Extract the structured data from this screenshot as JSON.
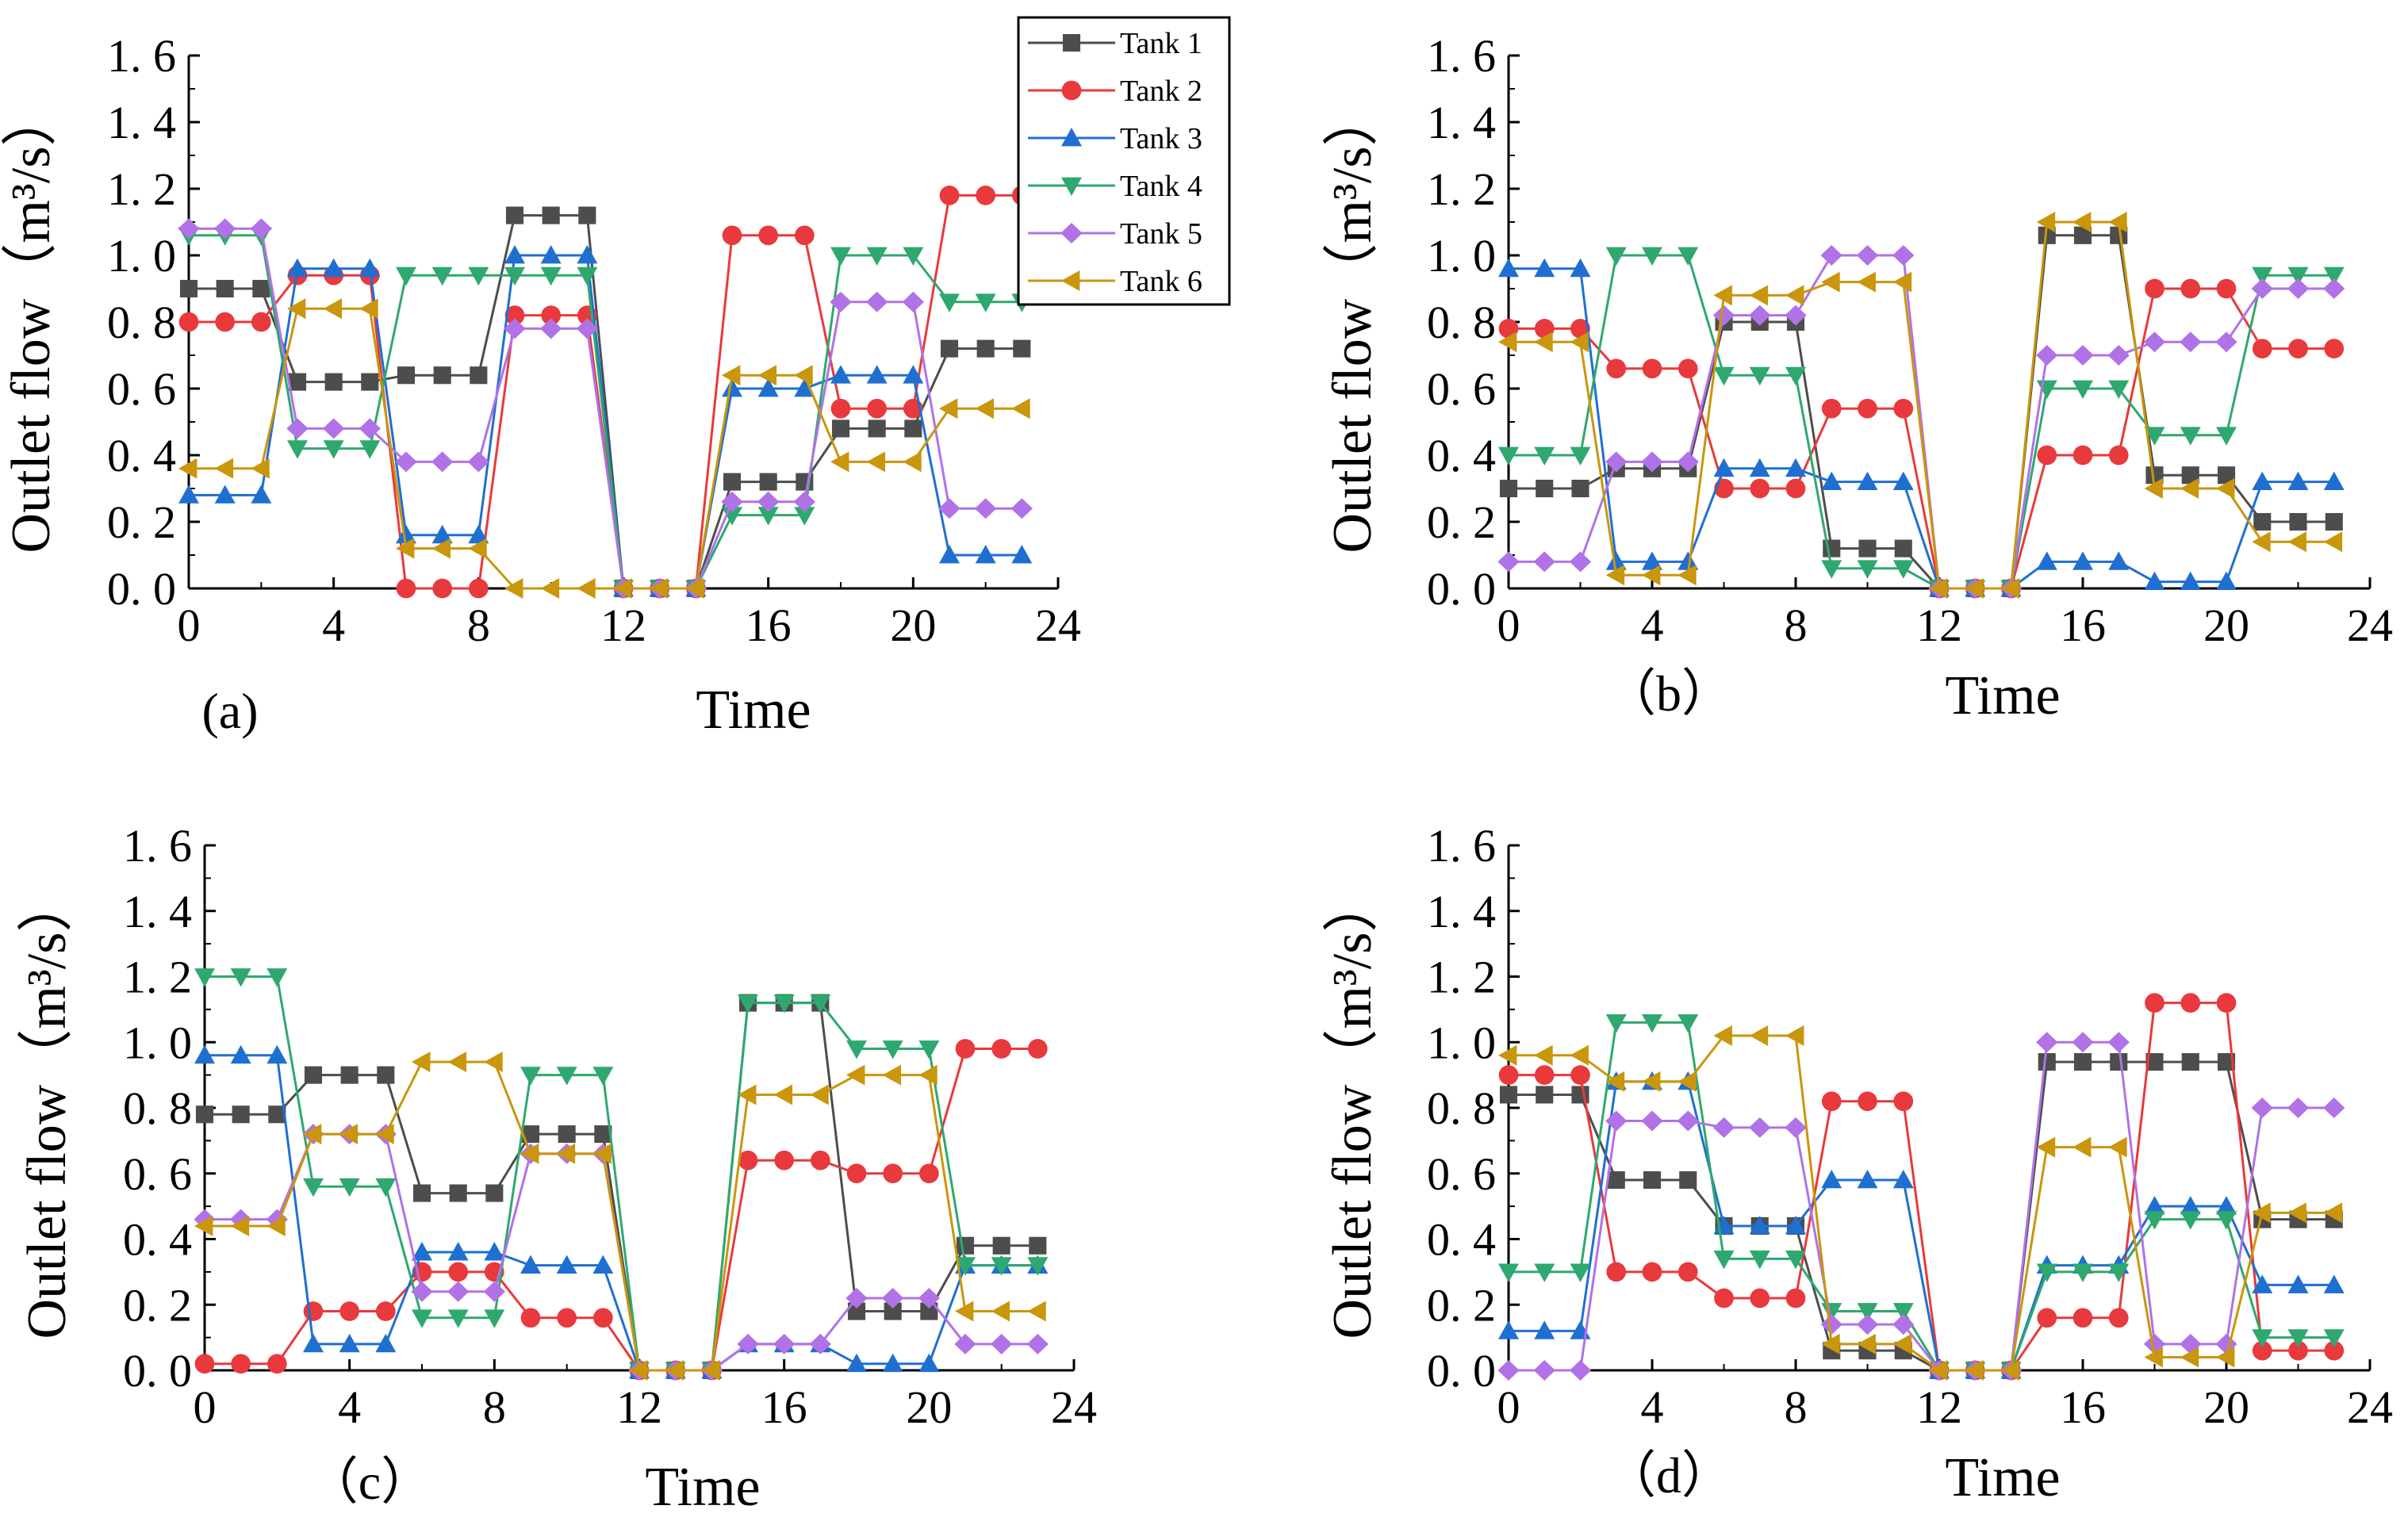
{
  "chart_data": [
    {
      "type": "line",
      "panel": "(a)",
      "xlabel": "Time",
      "ylabel": "Outlet flow（m³/s）",
      "xlim": [
        0,
        24
      ],
      "ylim": [
        0,
        1.6
      ],
      "x_ticks": [
        "0",
        "4",
        "8",
        "12",
        "16",
        "20",
        "24"
      ],
      "y_ticks": [
        "0. 0",
        "0. 2",
        "0. 4",
        "0. 6",
        "0. 8",
        "1. 0",
        "1. 2",
        "1. 4",
        "1. 6"
      ],
      "x": [
        0,
        1,
        2,
        3,
        4,
        5,
        6,
        7,
        8,
        9,
        10,
        11,
        12,
        13,
        14,
        15,
        16,
        17,
        18,
        19,
        20,
        21,
        22,
        23
      ],
      "series": [
        {
          "name": "Tank 1",
          "values": [
            0.9,
            0.9,
            0.9,
            0.62,
            0.62,
            0.62,
            0.64,
            0.64,
            0.64,
            1.12,
            1.12,
            1.12,
            0,
            0,
            0,
            0.32,
            0.32,
            0.32,
            0.48,
            0.48,
            0.48,
            0.72,
            0.72,
            0.72
          ]
        },
        {
          "name": "Tank 2",
          "values": [
            0.8,
            0.8,
            0.8,
            0.94,
            0.94,
            0.94,
            0,
            0,
            0,
            0.82,
            0.82,
            0.82,
            0,
            0,
            0,
            1.06,
            1.06,
            1.06,
            0.54,
            0.54,
            0.54,
            1.18,
            1.18,
            1.18
          ]
        },
        {
          "name": "Tank 3",
          "values": [
            0.28,
            0.28,
            0.28,
            0.96,
            0.96,
            0.96,
            0.16,
            0.16,
            0.16,
            1.0,
            1.0,
            1.0,
            0,
            0,
            0,
            0.6,
            0.6,
            0.6,
            0.64,
            0.64,
            0.64,
            0.1,
            0.1,
            0.1
          ]
        },
        {
          "name": "Tank 4",
          "values": [
            1.06,
            1.06,
            1.06,
            0.42,
            0.42,
            0.42,
            0.94,
            0.94,
            0.94,
            0.94,
            0.94,
            0.94,
            0,
            0,
            0,
            0.22,
            0.22,
            0.22,
            1.0,
            1.0,
            1.0,
            0.86,
            0.86,
            0.86
          ]
        },
        {
          "name": "Tank 5",
          "values": [
            1.08,
            1.08,
            1.08,
            0.48,
            0.48,
            0.48,
            0.38,
            0.38,
            0.38,
            0.78,
            0.78,
            0.78,
            0,
            0,
            0,
            0.26,
            0.26,
            0.26,
            0.86,
            0.86,
            0.86,
            0.24,
            0.24,
            0.24
          ]
        },
        {
          "name": "Tank 6",
          "values": [
            0.36,
            0.36,
            0.36,
            0.84,
            0.84,
            0.84,
            0.12,
            0.12,
            0.12,
            0,
            0,
            0,
            0,
            0,
            0,
            0.64,
            0.64,
            0.64,
            0.38,
            0.38,
            0.38,
            0.54,
            0.54,
            0.54
          ]
        }
      ]
    },
    {
      "type": "line",
      "panel": "（b）",
      "xlabel": "Time",
      "ylabel": "Outlet flow（m³/s）",
      "xlim": [
        0,
        24
      ],
      "ylim": [
        0,
        1.6
      ],
      "x_ticks": [
        "0",
        "4",
        "8",
        "12",
        "16",
        "20",
        "24"
      ],
      "y_ticks": [
        "0. 0",
        "0. 2",
        "0. 4",
        "0. 6",
        "0. 8",
        "1. 0",
        "1. 2",
        "1. 4",
        "1. 6"
      ],
      "x": [
        0,
        1,
        2,
        3,
        4,
        5,
        6,
        7,
        8,
        9,
        10,
        11,
        12,
        13,
        14,
        15,
        16,
        17,
        18,
        19,
        20,
        21,
        22,
        23
      ],
      "series": [
        {
          "name": "Tank 1",
          "values": [
            0.3,
            0.3,
            0.3,
            0.36,
            0.36,
            0.36,
            0.8,
            0.8,
            0.8,
            0.12,
            0.12,
            0.12,
            0,
            0,
            0,
            1.06,
            1.06,
            1.06,
            0.34,
            0.34,
            0.34,
            0.2,
            0.2,
            0.2
          ]
        },
        {
          "name": "Tank 2",
          "values": [
            0.78,
            0.78,
            0.78,
            0.66,
            0.66,
            0.66,
            0.3,
            0.3,
            0.3,
            0.54,
            0.54,
            0.54,
            0,
            0,
            0,
            0.4,
            0.4,
            0.4,
            0.9,
            0.9,
            0.9,
            0.72,
            0.72,
            0.72
          ]
        },
        {
          "name": "Tank 3",
          "values": [
            0.96,
            0.96,
            0.96,
            0.08,
            0.08,
            0.08,
            0.36,
            0.36,
            0.36,
            0.32,
            0.32,
            0.32,
            0,
            0,
            0,
            0.08,
            0.08,
            0.08,
            0.02,
            0.02,
            0.02,
            0.32,
            0.32,
            0.32
          ]
        },
        {
          "name": "Tank 4",
          "values": [
            0.4,
            0.4,
            0.4,
            1.0,
            1.0,
            1.0,
            0.64,
            0.64,
            0.64,
            0.06,
            0.06,
            0.06,
            0,
            0,
            0,
            0.6,
            0.6,
            0.6,
            0.46,
            0.46,
            0.46,
            0.94,
            0.94,
            0.94
          ]
        },
        {
          "name": "Tank 5",
          "values": [
            0.08,
            0.08,
            0.08,
            0.38,
            0.38,
            0.38,
            0.82,
            0.82,
            0.82,
            1.0,
            1.0,
            1.0,
            0,
            0,
            0,
            0.7,
            0.7,
            0.7,
            0.74,
            0.74,
            0.74,
            0.9,
            0.9,
            0.9
          ]
        },
        {
          "name": "Tank 6",
          "values": [
            0.74,
            0.74,
            0.74,
            0.04,
            0.04,
            0.04,
            0.88,
            0.88,
            0.88,
            0.92,
            0.92,
            0.92,
            0,
            0,
            0,
            1.1,
            1.1,
            1.1,
            0.3,
            0.3,
            0.3,
            0.14,
            0.14,
            0.14
          ]
        }
      ]
    },
    {
      "type": "line",
      "panel": "（c）",
      "xlabel": "Time",
      "ylabel": "Outlet flow（m³/s）",
      "xlim": [
        0,
        24
      ],
      "ylim": [
        0,
        1.6
      ],
      "x_ticks": [
        "0",
        "4",
        "8",
        "12",
        "16",
        "20",
        "24"
      ],
      "y_ticks": [
        "0. 0",
        "0. 2",
        "0. 4",
        "0. 6",
        "0. 8",
        "1. 0",
        "1. 2",
        "1. 4",
        "1. 6"
      ],
      "x": [
        0,
        1,
        2,
        3,
        4,
        5,
        6,
        7,
        8,
        9,
        10,
        11,
        12,
        13,
        14,
        15,
        16,
        17,
        18,
        19,
        20,
        21,
        22,
        23
      ],
      "series": [
        {
          "name": "Tank 1",
          "values": [
            0.78,
            0.78,
            0.78,
            0.9,
            0.9,
            0.9,
            0.54,
            0.54,
            0.54,
            0.72,
            0.72,
            0.72,
            0,
            0,
            0,
            1.12,
            1.12,
            1.12,
            0.18,
            0.18,
            0.18,
            0.38,
            0.38,
            0.38
          ]
        },
        {
          "name": "Tank 2",
          "values": [
            0.02,
            0.02,
            0.02,
            0.18,
            0.18,
            0.18,
            0.3,
            0.3,
            0.3,
            0.16,
            0.16,
            0.16,
            0,
            0,
            0,
            0.64,
            0.64,
            0.64,
            0.6,
            0.6,
            0.6,
            0.98,
            0.98,
            0.98
          ]
        },
        {
          "name": "Tank 3",
          "values": [
            0.96,
            0.96,
            0.96,
            0.08,
            0.08,
            0.08,
            0.36,
            0.36,
            0.36,
            0.32,
            0.32,
            0.32,
            0,
            0,
            0,
            0.08,
            0.08,
            0.08,
            0.02,
            0.02,
            0.02,
            0.32,
            0.32,
            0.32
          ]
        },
        {
          "name": "Tank 4",
          "values": [
            1.2,
            1.2,
            1.2,
            0.56,
            0.56,
            0.56,
            0.16,
            0.16,
            0.16,
            0.9,
            0.9,
            0.9,
            0,
            0,
            0,
            1.12,
            1.12,
            1.12,
            0.98,
            0.98,
            0.98,
            0.32,
            0.32,
            0.32
          ]
        },
        {
          "name": "Tank 5",
          "values": [
            0.46,
            0.46,
            0.46,
            0.72,
            0.72,
            0.72,
            0.24,
            0.24,
            0.24,
            0.66,
            0.66,
            0.66,
            0,
            0,
            0,
            0.08,
            0.08,
            0.08,
            0.22,
            0.22,
            0.22,
            0.08,
            0.08,
            0.08
          ]
        },
        {
          "name": "Tank 6",
          "values": [
            0.44,
            0.44,
            0.44,
            0.72,
            0.72,
            0.72,
            0.94,
            0.94,
            0.94,
            0.66,
            0.66,
            0.66,
            0,
            0,
            0,
            0.84,
            0.84,
            0.84,
            0.9,
            0.9,
            0.9,
            0.18,
            0.18,
            0.18
          ]
        }
      ]
    },
    {
      "type": "line",
      "panel": "（d）",
      "xlabel": "Time",
      "ylabel": "Outlet flow（m³/s）",
      "xlim": [
        0,
        24
      ],
      "ylim": [
        0,
        1.6
      ],
      "x_ticks": [
        "0",
        "4",
        "8",
        "12",
        "16",
        "20",
        "24"
      ],
      "y_ticks": [
        "0. 0",
        "0. 2",
        "0. 4",
        "0. 6",
        "0. 8",
        "1. 0",
        "1. 2",
        "1. 4",
        "1. 6"
      ],
      "x": [
        0,
        1,
        2,
        3,
        4,
        5,
        6,
        7,
        8,
        9,
        10,
        11,
        12,
        13,
        14,
        15,
        16,
        17,
        18,
        19,
        20,
        21,
        22,
        23
      ],
      "series": [
        {
          "name": "Tank 1",
          "values": [
            0.84,
            0.84,
            0.84,
            0.58,
            0.58,
            0.58,
            0.44,
            0.44,
            0.44,
            0.06,
            0.06,
            0.06,
            0,
            0,
            0,
            0.94,
            0.94,
            0.94,
            0.94,
            0.94,
            0.94,
            0.46,
            0.46,
            0.46
          ]
        },
        {
          "name": "Tank 2",
          "values": [
            0.9,
            0.9,
            0.9,
            0.3,
            0.3,
            0.3,
            0.22,
            0.22,
            0.22,
            0.82,
            0.82,
            0.82,
            0,
            0,
            0,
            0.16,
            0.16,
            0.16,
            1.12,
            1.12,
            1.12,
            0.06,
            0.06,
            0.06
          ]
        },
        {
          "name": "Tank 3",
          "values": [
            0.12,
            0.12,
            0.12,
            0.88,
            0.88,
            0.88,
            0.44,
            0.44,
            0.44,
            0.58,
            0.58,
            0.58,
            0,
            0,
            0,
            0.32,
            0.32,
            0.32,
            0.5,
            0.5,
            0.5,
            0.26,
            0.26,
            0.26
          ]
        },
        {
          "name": "Tank 4",
          "values": [
            0.3,
            0.3,
            0.3,
            1.06,
            1.06,
            1.06,
            0.34,
            0.34,
            0.34,
            0.18,
            0.18,
            0.18,
            0,
            0,
            0,
            0.3,
            0.3,
            0.3,
            0.46,
            0.46,
            0.46,
            0.1,
            0.1,
            0.1
          ]
        },
        {
          "name": "Tank 5",
          "values": [
            0,
            0,
            0,
            0.76,
            0.76,
            0.76,
            0.74,
            0.74,
            0.74,
            0.14,
            0.14,
            0.14,
            0,
            0,
            0,
            1.0,
            1.0,
            1.0,
            0.08,
            0.08,
            0.08,
            0.8,
            0.8,
            0.8
          ]
        },
        {
          "name": "Tank 6",
          "values": [
            0.96,
            0.96,
            0.96,
            0.88,
            0.88,
            0.88,
            1.02,
            1.02,
            1.02,
            0.08,
            0.08,
            0.08,
            0,
            0,
            0,
            0.68,
            0.68,
            0.68,
            0.04,
            0.04,
            0.04,
            0.48,
            0.48,
            0.48
          ]
        }
      ]
    }
  ],
  "legend": {
    "items": [
      "Tank 1",
      "Tank 2",
      "Tank 3",
      "Tank 4",
      "Tank 5",
      "Tank 6"
    ]
  },
  "series_style": [
    {
      "color": "#4d4d4d",
      "marker": "square"
    },
    {
      "color": "#e8393c",
      "marker": "circle"
    },
    {
      "color": "#1f6fd1",
      "marker": "triangle-up"
    },
    {
      "color": "#2ea86f",
      "marker": "triangle-down"
    },
    {
      "color": "#b072e6",
      "marker": "diamond"
    },
    {
      "color": "#c9960c",
      "marker": "triangle-left"
    }
  ]
}
